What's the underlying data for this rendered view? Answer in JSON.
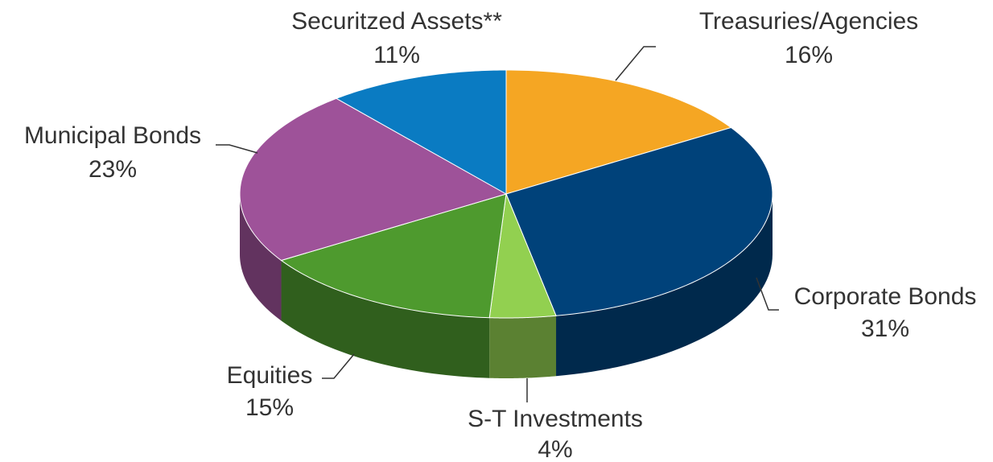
{
  "chart_data": {
    "type": "pie",
    "categories": [
      "Treasuries/Agencies",
      "Corporate Bonds",
      "S-T Investments",
      "Equities",
      "Municipal Bonds",
      "Securitzed Assets**"
    ],
    "values": [
      16,
      31,
      4,
      15,
      23,
      11
    ],
    "value_labels": [
      "16%",
      "31%",
      "4%",
      "15%",
      "23%",
      "11%"
    ],
    "colors": [
      "#f5a623",
      "#00427a",
      "#92d050",
      "#4e9a2e",
      "#9e5299",
      "#0a7bc2"
    ]
  }
}
